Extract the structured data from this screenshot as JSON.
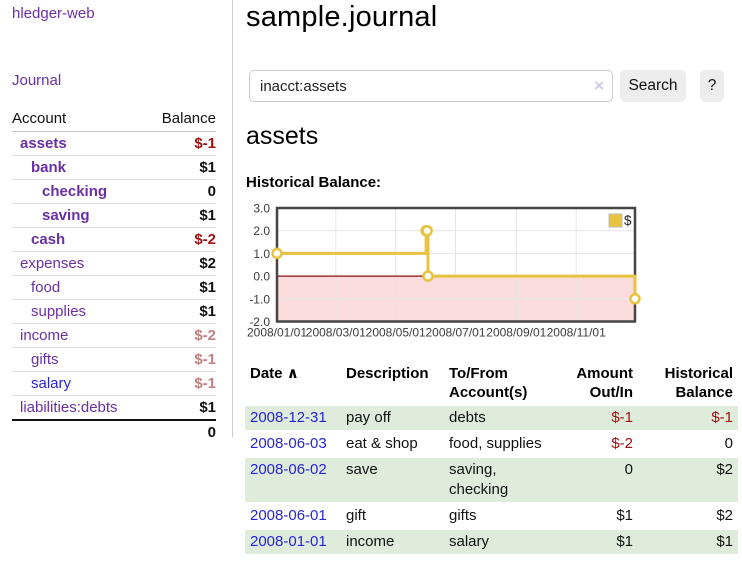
{
  "app_title": "hledger-web",
  "sidebar": {
    "journal_link": "Journal",
    "accounts_table": {
      "account_header": "Account",
      "balance_header": "Balance",
      "rows": [
        {
          "account": "assets",
          "balance": "$-1",
          "indent": 0,
          "bold": true,
          "balance_style": "neg"
        },
        {
          "account": "bank",
          "balance": "$1",
          "indent": 1,
          "bold": true,
          "balance_style": "pos"
        },
        {
          "account": "checking",
          "balance": "0",
          "indent": 2,
          "bold": true,
          "balance_style": "pos"
        },
        {
          "account": "saving",
          "balance": "$1",
          "indent": 2,
          "bold": true,
          "balance_style": "pos"
        },
        {
          "account": "cash",
          "balance": "$-2",
          "indent": 1,
          "bold": true,
          "balance_style": "neg"
        },
        {
          "account": "expenses",
          "balance": "$2",
          "indent": 0,
          "bold": false,
          "balance_style": "pos"
        },
        {
          "account": "food",
          "balance": "$1",
          "indent": 1,
          "bold": false,
          "balance_style": "pos"
        },
        {
          "account": "supplies",
          "balance": "$1",
          "indent": 1,
          "bold": false,
          "balance_style": "pos"
        },
        {
          "account": "income",
          "balance": "$-2",
          "indent": 0,
          "bold": false,
          "balance_style": "lightneg"
        },
        {
          "account": "gifts",
          "balance": "$-1",
          "indent": 1,
          "bold": false,
          "balance_style": "lightneg"
        },
        {
          "account": "salary",
          "balance": "$-1",
          "indent": 1,
          "bold": false,
          "balance_style": "lightneg",
          "link_style": "blue"
        },
        {
          "account": "liabilities:debts",
          "balance": "$1",
          "indent": 0,
          "bold": false,
          "balance_style": "pos"
        }
      ],
      "total": "0"
    }
  },
  "main": {
    "title": "sample.journal",
    "search": {
      "value": "inacct:assets",
      "clear_icon": "×",
      "search_button": "Search",
      "help_button": "?"
    },
    "account_heading": "assets",
    "chart_title": "Historical Balance:"
  },
  "chart_data": {
    "type": "line",
    "step": true,
    "title": "Historical Balance",
    "series": [
      {
        "name": "$",
        "color": "#e8c33f",
        "points": [
          [
            "2008/01/01",
            1
          ],
          [
            "2008/06/01",
            2
          ],
          [
            "2008/06/02",
            2
          ],
          [
            "2008/06/03",
            0
          ],
          [
            "2008/12/31",
            -1
          ]
        ]
      }
    ],
    "x_range": [
      "2008/01/01",
      "2008/12/31"
    ],
    "ylim": [
      -2,
      3
    ],
    "y_ticks": [
      "3.0",
      "2.0",
      "1.0",
      "0.0",
      "-1.0",
      "-2.0"
    ],
    "x_ticks": [
      "2008/01/01",
      "2008/03/01",
      "2008/05/01",
      "2008/07/01",
      "2008/09/01",
      "2008/11/01"
    ],
    "grid": true,
    "legend": {
      "label": "$",
      "position": "top-right"
    },
    "negative_region_color": "#fbdcdc",
    "zero_line_color": "#8f0e0e",
    "border_color": "#454545",
    "grid_color": "#e4e4e4"
  },
  "register": {
    "headers": [
      "Date",
      "Description",
      "To/From Account(s)",
      "Amount Out/In",
      "Historical Balance"
    ],
    "sort_indicator": "∧",
    "rows": [
      {
        "date": "2008-12-31",
        "description": "pay off",
        "accounts": "debts",
        "amount": "$-1",
        "balance": "$-1",
        "amount_style": "neg",
        "balance_style": "neg",
        "shaded": true
      },
      {
        "date": "2008-06-03",
        "description": "eat & shop",
        "accounts": "food, supplies",
        "amount": "$-2",
        "balance": "0",
        "amount_style": "neg",
        "balance_style": "pos",
        "shaded": false
      },
      {
        "date": "2008-06-02",
        "description": "save",
        "accounts": "saving, checking",
        "amount": "0",
        "balance": "$2",
        "amount_style": "pos",
        "balance_style": "pos",
        "shaded": true
      },
      {
        "date": "2008-06-01",
        "description": "gift",
        "accounts": "gifts",
        "amount": "$1",
        "balance": "$2",
        "amount_style": "pos",
        "balance_style": "pos",
        "shaded": false
      },
      {
        "date": "2008-01-01",
        "description": "income",
        "accounts": "salary",
        "amount": "$1",
        "balance": "$1",
        "amount_style": "pos",
        "balance_style": "pos",
        "shaded": true
      }
    ]
  },
  "colors": {
    "link_purple": "#6a2fa5",
    "link_blue": "#2626d8",
    "negative_red": "#a31010",
    "muted_negative_red": "#c47f7f",
    "row_green": "#dfecdc",
    "series_gold": "#e8c33f",
    "button_gray": "#ededed"
  }
}
